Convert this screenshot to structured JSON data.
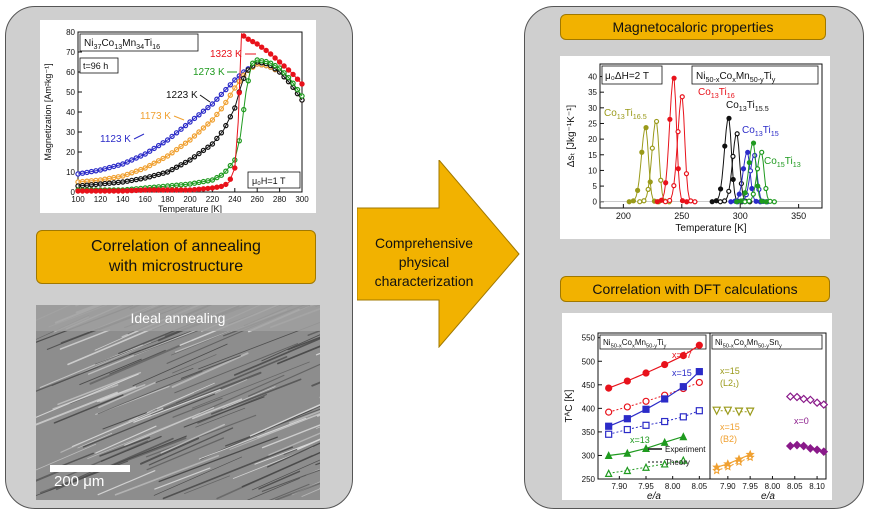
{
  "left_panel": {
    "title": "Correlation of annealing\nwith microstructure",
    "title_line1": "Correlation of annealing",
    "title_line2": "with microstructure",
    "micrograph_label": "Ideal annealing",
    "scale_bar_label": "200 μm"
  },
  "center": {
    "line1": "Comprehensive",
    "line2": "physical",
    "line3": "characterization"
  },
  "right_panel": {
    "top_title": "Magnetocaloric properties",
    "bottom_title": "Correlation with DFT calculations"
  },
  "colors": {
    "panel_bg": "#cfcfcf",
    "accent": "#f2b200",
    "red": "#e8121b",
    "green": "#1f9a1f",
    "blue": "#2b2bc8",
    "orange": "#f0a030",
    "olive": "#9a9a1a",
    "purple": "#8a1a8a",
    "black": "#111111",
    "gray": "#6a6a6a"
  },
  "chart_data": [
    {
      "type": "scatter",
      "id": "magnetization",
      "xlabel": "Temperature [K]",
      "ylabel": "Magnetization [Am²kg⁻¹]",
      "xlim": [
        100,
        300
      ],
      "ylim": [
        0,
        80
      ],
      "xticks": [
        100,
        120,
        140,
        160,
        180,
        200,
        220,
        240,
        260,
        280,
        300
      ],
      "yticks": [
        0,
        10,
        20,
        30,
        40,
        50,
        60,
        70,
        80
      ],
      "composition": {
        "parts": [
          [
            "Ni",
            ""
          ],
          [
            "37",
            "sub"
          ],
          [
            "Co",
            ""
          ],
          [
            "13",
            "sub"
          ],
          [
            "Mn",
            ""
          ],
          [
            "34",
            "sub"
          ],
          [
            "Ti",
            ""
          ],
          [
            "16",
            "sub"
          ]
        ]
      },
      "time_label": "t=96 h",
      "field_label": "μ₀H=1 T",
      "series": [
        {
          "name": "1123 K",
          "color": "#2b2bc8",
          "x": [
            100,
            120,
            140,
            160,
            180,
            200,
            220,
            230,
            240,
            250,
            260,
            270,
            280,
            290,
            300
          ],
          "y": [
            9,
            11,
            14,
            19,
            26,
            35,
            44,
            50,
            56,
            61,
            64,
            63,
            60,
            54,
            46
          ]
        },
        {
          "name": "1173 K",
          "color": "#f0a030",
          "x": [
            100,
            120,
            140,
            160,
            180,
            200,
            220,
            230,
            240,
            250,
            260,
            270,
            280,
            290,
            300
          ],
          "y": [
            5,
            6,
            8,
            12,
            18,
            26,
            36,
            43,
            52,
            60,
            64,
            63,
            60,
            54,
            46
          ]
        },
        {
          "name": "1223 K",
          "color": "#111111",
          "x": [
            100,
            120,
            140,
            160,
            180,
            200,
            220,
            230,
            240,
            245,
            250,
            260,
            270,
            280,
            290,
            300
          ],
          "y": [
            3,
            4,
            5,
            7,
            10,
            16,
            24,
            31,
            42,
            52,
            60,
            65,
            64,
            60,
            54,
            46
          ]
        },
        {
          "name": "1273 K",
          "color": "#1f9a1f",
          "x": [
            100,
            140,
            160,
            180,
            200,
            220,
            230,
            240,
            245,
            250,
            255,
            260,
            270,
            280,
            290,
            300
          ],
          "y": [
            1,
            1,
            2,
            3,
            4,
            6,
            9,
            16,
            28,
            50,
            64,
            66,
            65,
            62,
            56,
            48
          ]
        },
        {
          "name": "1323 K",
          "color": "#e8121b",
          "x": [
            100,
            140,
            160,
            180,
            200,
            220,
            230,
            235,
            240,
            243,
            246,
            250,
            260,
            270,
            280,
            290,
            300
          ],
          "y": [
            0.5,
            0.5,
            1,
            1,
            1,
            2,
            3,
            5,
            12,
            35,
            79,
            77,
            74,
            70,
            65,
            60,
            54
          ]
        }
      ]
    },
    {
      "type": "line",
      "id": "entropy",
      "xlabel": "Temperature [K]",
      "ylabel": "Δsₜ [Jkg⁻¹K⁻¹]",
      "xlim": [
        180,
        370
      ],
      "ylim": [
        -2,
        44
      ],
      "xticks": [
        200,
        250,
        300,
        350
      ],
      "yticks": [
        0,
        5,
        10,
        15,
        20,
        25,
        30,
        35,
        40
      ],
      "field_label": "μ₀ΔH=2 T",
      "composition": {
        "parts": [
          [
            "Ni",
            ""
          ],
          [
            "50-x",
            "sub"
          ],
          [
            "Co",
            ""
          ],
          [
            "x",
            "sub"
          ],
          [
            "Mn",
            ""
          ],
          [
            "50-y",
            "sub"
          ],
          [
            "Ti",
            ""
          ],
          [
            "y",
            "sub"
          ]
        ]
      },
      "series": [
        {
          "name": "Co13Ti16.5",
          "label_parts": [
            [
              "Co",
              ""
            ],
            [
              "13",
              "sub"
            ],
            [
              "Ti",
              ""
            ],
            [
              "16.5",
              "sub"
            ]
          ],
          "color": "#9a9a1a",
          "peaks": [
            [
              219,
              24
            ],
            [
              228,
              26
            ]
          ]
        },
        {
          "name": "Co13Ti16",
          "label_parts": [
            [
              "Co",
              ""
            ],
            [
              "13",
              "sub"
            ],
            [
              "Ti",
              ""
            ],
            [
              "16",
              "sub"
            ]
          ],
          "color": "#e8121b",
          "peaks": [
            [
              243,
              40
            ],
            [
              250,
              34
            ]
          ]
        },
        {
          "name": "Co13Ti15.5",
          "label_parts": [
            [
              "Co",
              ""
            ],
            [
              "13",
              "sub"
            ],
            [
              "Ti",
              ""
            ],
            [
              "15.5",
              "sub"
            ]
          ],
          "color": "#111111",
          "peaks": [
            [
              290,
              27
            ],
            [
              297,
              22
            ]
          ]
        },
        {
          "name": "Co13Ti15",
          "label_parts": [
            [
              "Co",
              ""
            ],
            [
              "13",
              "sub"
            ],
            [
              "Ti",
              ""
            ],
            [
              "15",
              "sub"
            ]
          ],
          "color": "#2b2bc8",
          "peaks": [
            [
              306,
              16
            ],
            [
              312,
              15
            ]
          ]
        },
        {
          "name": "Co15Ti13",
          "label_parts": [
            [
              "Co",
              ""
            ],
            [
              "15",
              "sub"
            ],
            [
              "Ti",
              ""
            ],
            [
              "13",
              "sub"
            ]
          ],
          "color": "#1f9a1f",
          "peaks": [
            [
              311,
              19
            ],
            [
              318,
              16
            ]
          ]
        }
      ]
    },
    {
      "type": "scatter",
      "id": "dft",
      "xlabel": "e/a",
      "ylabel": "TᴬC [K]",
      "ylim": [
        250,
        560
      ],
      "yticks": [
        250,
        300,
        350,
        400,
        450,
        500,
        550
      ],
      "legend": {
        "experiment": "Experiment",
        "theory": "Theory"
      },
      "left_panel": {
        "composition": {
          "parts": [
            [
              "Ni",
              ""
            ],
            [
              "50-x",
              "sub"
            ],
            [
              "Co",
              ""
            ],
            [
              "x",
              "sub"
            ],
            [
              "Mn",
              ""
            ],
            [
              "50-y",
              "sub"
            ],
            [
              "Ti",
              ""
            ],
            [
              "y",
              "sub"
            ]
          ]
        },
        "xlim": [
          7.86,
          8.07
        ],
        "xticks": [
          7.9,
          7.95,
          8.0,
          8.05
        ],
        "series": [
          {
            "name": "x=17",
            "color": "#e8121b",
            "x": [
              7.88,
              7.915,
              7.95,
              7.985,
              8.02,
              8.05
            ],
            "exp": [
              443,
              458,
              475,
              493,
              512,
              534
            ],
            "theory": [
              392,
              403,
              415,
              428,
              442,
              455
            ]
          },
          {
            "name": "x=15",
            "color": "#2b2bc8",
            "x": [
              7.88,
              7.915,
              7.95,
              7.985,
              8.02,
              8.05
            ],
            "exp": [
              362,
              378,
              398,
              420,
              446,
              478
            ],
            "theory": [
              345,
              355,
              364,
              372,
              382,
              395
            ]
          },
          {
            "name": "x=13",
            "color": "#1f9a1f",
            "x": [
              7.88,
              7.915,
              7.95,
              7.985,
              8.02
            ],
            "exp": [
              300,
              305,
              315,
              328,
              340
            ],
            "theory": [
              262,
              268,
              275,
              282,
              290
            ]
          }
        ]
      },
      "right_panel": {
        "composition": {
          "parts": [
            [
              "Ni",
              ""
            ],
            [
              "50-x",
              "sub"
            ],
            [
              "Co",
              ""
            ],
            [
              "x",
              "sub"
            ],
            [
              "Mn",
              ""
            ],
            [
              "50-y",
              "sub"
            ],
            [
              "Sn",
              ""
            ],
            [
              "y",
              "sub"
            ]
          ]
        },
        "xlim": [
          7.86,
          8.12
        ],
        "xticks": [
          7.9,
          7.95,
          8.0,
          8.05,
          8.1
        ],
        "series": [
          {
            "name": "x=15",
            "sublabel": "(L2₁)",
            "color": "#9a9a1a",
            "marker": "triangle-down",
            "x": [
              7.875,
              7.9,
              7.925,
              7.95
            ],
            "theory": [
              395,
              395,
              393,
              393
            ]
          },
          {
            "name": "x=0",
            "color": "#8a1a8a",
            "marker": "diamond",
            "x": [
              8.04,
              8.055,
              8.07,
              8.085,
              8.1,
              8.115
            ],
            "exp": [
              320,
              322,
              320,
              315,
              312,
              308
            ],
            "theory": [
              425,
              424,
              420,
              418,
              412,
              408
            ]
          },
          {
            "name": "x=15",
            "sublabel": "(B2)",
            "color": "#f0a030",
            "marker": "star",
            "x": [
              7.875,
              7.9,
              7.925,
              7.95
            ],
            "exp": [
              275,
              282,
              292,
              302
            ],
            "theory": [
              268,
              276,
              286,
              296
            ]
          }
        ]
      }
    }
  ]
}
